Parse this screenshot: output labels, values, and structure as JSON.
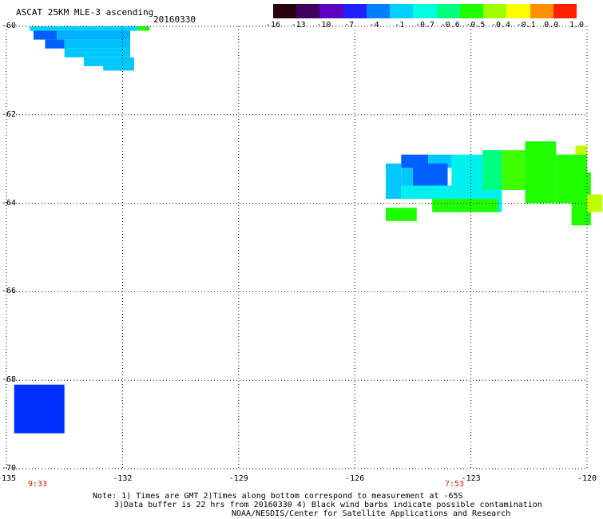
{
  "header": {
    "title": "ASCAT 25KM MLE-3 ascending",
    "date": "20160330"
  },
  "colorbar": {
    "labels": [
      "-16",
      "-13",
      "-10",
      "-7",
      "-4",
      "-1",
      "-0.7",
      "-0.6",
      "-0.5",
      "-0.4",
      "-0.1",
      "0.0",
      "1.0"
    ],
    "colors": [
      "#2a0010",
      "#400060",
      "#6000c0",
      "#2020ff",
      "#0080ff",
      "#00d0ff",
      "#00ffe0",
      "#00ff80",
      "#20ff00",
      "#a0ff00",
      "#ffff00",
      "#ff9000",
      "#ff2000"
    ]
  },
  "axes": {
    "x_ticks": [
      "-135",
      "-132",
      "-129",
      "-126",
      "-123",
      "-120"
    ],
    "y_ticks": [
      "-60",
      "-62",
      "-64",
      "-66",
      "-68",
      "-70"
    ]
  },
  "times": {
    "left": "9:33",
    "right": "7:53"
  },
  "notes": {
    "line1": "Note: 1) Times are GMT 2)Times along bottom correspond to measurement at -65S",
    "line2": "3)Data buffer is 22 hrs from 20160330 4) Black wind barbs indicate possible contamination",
    "line3": "NOAA/NESDIS/Center for Satellite Applications and Research"
  },
  "map_data": {
    "lon_range": [
      -135,
      -120
    ],
    "lat_range": [
      -70,
      -60
    ],
    "cells": [
      {
        "lon": -134.4,
        "lat": -60.0,
        "dlon": 2.8,
        "dlat": 0.1,
        "color": "#00d0ff"
      },
      {
        "lon": -131.6,
        "lat": -60.0,
        "dlon": 0.3,
        "dlat": 0.1,
        "color": "#20ff00"
      },
      {
        "lon": -134.3,
        "lat": -60.1,
        "dlon": 0.6,
        "dlat": 0.2,
        "color": "#0060ff"
      },
      {
        "lon": -133.7,
        "lat": -60.1,
        "dlon": 1.9,
        "dlat": 0.2,
        "color": "#00b0ff"
      },
      {
        "lon": -134.0,
        "lat": -60.3,
        "dlon": 0.5,
        "dlat": 0.2,
        "color": "#0060ff"
      },
      {
        "lon": -133.5,
        "lat": -60.3,
        "dlon": 1.7,
        "dlat": 0.2,
        "color": "#00c0ff"
      },
      {
        "lon": -133.5,
        "lat": -60.5,
        "dlon": 1.7,
        "dlat": 0.2,
        "color": "#00c8ff"
      },
      {
        "lon": -133.0,
        "lat": -60.7,
        "dlon": 1.3,
        "dlat": 0.2,
        "color": "#00c8ff"
      },
      {
        "lon": -132.5,
        "lat": -60.9,
        "dlon": 0.8,
        "dlat": 0.1,
        "color": "#00c8ff"
      },
      {
        "lon": -124.8,
        "lat": -62.9,
        "dlon": 0.7,
        "dlat": 0.3,
        "color": "#0060ff"
      },
      {
        "lon": -124.1,
        "lat": -62.9,
        "dlon": 0.6,
        "dlat": 0.3,
        "color": "#00c8ff"
      },
      {
        "lon": -123.5,
        "lat": -62.9,
        "dlon": 1.3,
        "dlat": 1.3,
        "color": "#00f0f0"
      },
      {
        "lon": -125.2,
        "lat": -63.1,
        "dlon": 0.4,
        "dlat": 0.8,
        "color": "#00c8ff"
      },
      {
        "lon": -124.8,
        "lat": -63.2,
        "dlon": 0.3,
        "dlat": 0.6,
        "color": "#00c8ff"
      },
      {
        "lon": -124.5,
        "lat": -63.1,
        "dlon": 0.9,
        "dlat": 0.6,
        "color": "#0060ff"
      },
      {
        "lon": -124.8,
        "lat": -63.6,
        "dlon": 1.3,
        "dlat": 0.3,
        "color": "#00f0f0"
      },
      {
        "lon": -122.7,
        "lat": -62.8,
        "dlon": 0.5,
        "dlat": 0.9,
        "color": "#00ff80"
      },
      {
        "lon": -122.2,
        "lat": -62.8,
        "dlon": 0.6,
        "dlat": 0.9,
        "color": "#40ff00"
      },
      {
        "lon": -121.6,
        "lat": -62.6,
        "dlon": 0.8,
        "dlat": 1.4,
        "color": "#20ff00"
      },
      {
        "lon": -120.8,
        "lat": -62.9,
        "dlon": 0.8,
        "dlat": 1.1,
        "color": "#20ff00"
      },
      {
        "lon": -120.3,
        "lat": -62.7,
        "dlon": 0.3,
        "dlat": 0.2,
        "color": "#c0ff00"
      },
      {
        "lon": -120.4,
        "lat": -63.3,
        "dlon": 0.5,
        "dlat": 1.2,
        "color": "#20ff00"
      },
      {
        "lon": -120.0,
        "lat": -63.8,
        "dlon": 0.4,
        "dlat": 0.4,
        "color": "#c0ff00"
      },
      {
        "lon": -124.0,
        "lat": -63.9,
        "dlon": 1.7,
        "dlat": 0.3,
        "color": "#20ff00"
      },
      {
        "lon": -125.2,
        "lat": -64.1,
        "dlon": 0.8,
        "dlat": 0.3,
        "color": "#20ff00"
      },
      {
        "lon": -134.8,
        "lat": -68.1,
        "dlon": 1.3,
        "dlat": 1.1,
        "color": "#0030ff"
      }
    ]
  }
}
